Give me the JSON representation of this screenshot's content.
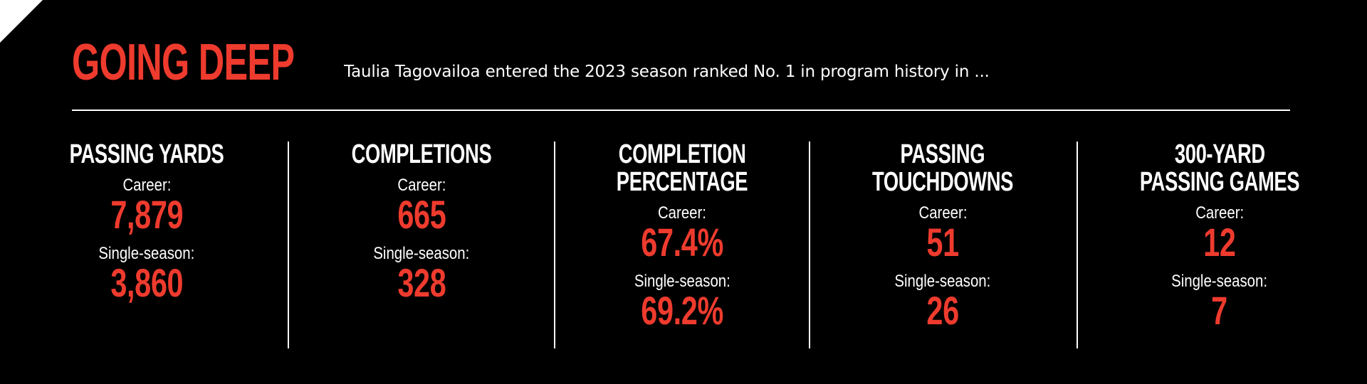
{
  "header": {
    "title": "GOING DEEP",
    "subtitle": "Taulia Tagovailoa entered the 2023 season ranked No. 1 in program history in ..."
  },
  "colors": {
    "background": "#000000",
    "accent": "#ee3b2e",
    "text": "#ffffff"
  },
  "stats": [
    {
      "category_lines": [
        "PASSING YARDS"
      ],
      "career_label": "Career:",
      "career_value": "7,879",
      "season_label": "Single-season:",
      "season_value": "3,860"
    },
    {
      "category_lines": [
        "COMPLETIONS"
      ],
      "career_label": "Career:",
      "career_value": "665",
      "season_label": "Single-season:",
      "season_value": "328"
    },
    {
      "category_lines": [
        "COMPLETION",
        "PERCENTAGE"
      ],
      "career_label": "Career:",
      "career_value": "67.4%",
      "season_label": "Single-season:",
      "season_value": "69.2%"
    },
    {
      "category_lines": [
        "PASSING",
        "TOUCHDOWNS"
      ],
      "career_label": "Career:",
      "career_value": "51",
      "season_label": "Single-season:",
      "season_value": "26"
    },
    {
      "category_lines": [
        "300-YARD",
        "PASSING GAMES"
      ],
      "career_label": "Career:",
      "career_value": "12",
      "season_label": "Single-season:",
      "season_value": "7"
    }
  ]
}
